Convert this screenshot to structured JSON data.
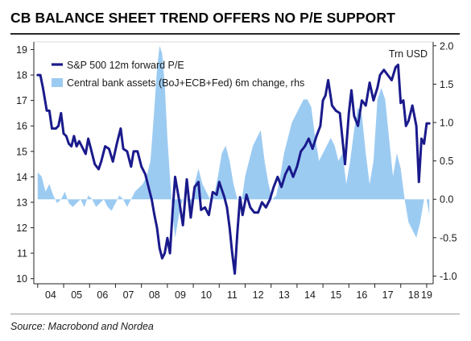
{
  "header": {
    "title": "CB BALANCE SHEET TREND OFFERS NO P/E SUPPORT"
  },
  "footer": {
    "source": "Source: Macrobond and Nordea"
  },
  "chart_data": {
    "type": "line",
    "title": "CB BALANCE SHEET TREND OFFERS NO P/E SUPPORT",
    "xlabel": "",
    "ylabel": "",
    "y2label": "Trn USD",
    "x_tick_labels": [
      "04",
      "05",
      "06",
      "07",
      "08",
      "09",
      "10",
      "11",
      "12",
      "13",
      "14",
      "15",
      "16",
      "17",
      "18",
      "19"
    ],
    "xlim": [
      2003.85,
      2019.25
    ],
    "ylim": [
      9.8,
      19.3
    ],
    "y_ticks": [
      10,
      11,
      12,
      13,
      14,
      15,
      16,
      17,
      18,
      19
    ],
    "y2lim": [
      -1.1,
      2.05
    ],
    "y2_ticks": [
      "2.0",
      "1.5",
      "1.0",
      "0.5",
      "0.0",
      "-0.5",
      "-1.0"
    ],
    "y2_tick_values": [
      2.0,
      1.5,
      1.0,
      0.5,
      0.0,
      -0.5,
      -1.0
    ],
    "legend_position": "top-left",
    "grid": false,
    "colors": {
      "line": "#1a1a8c",
      "area": "#9ccbf2"
    },
    "series": [
      {
        "name": "S&P 500 12m forward P/E",
        "type": "line",
        "axis": "left",
        "x": [
          2004.0,
          2004.1,
          2004.2,
          2004.35,
          2004.45,
          2004.55,
          2004.7,
          2004.8,
          2004.9,
          2005.0,
          2005.1,
          2005.2,
          2005.3,
          2005.4,
          2005.5,
          2005.6,
          2005.7,
          2005.85,
          2005.95,
          2006.05,
          2006.2,
          2006.35,
          2006.45,
          2006.6,
          2006.75,
          2006.9,
          2007.05,
          2007.2,
          2007.3,
          2007.45,
          2007.6,
          2007.7,
          2007.85,
          2008.0,
          2008.15,
          2008.3,
          2008.4,
          2008.5,
          2008.6,
          2008.7,
          2008.8,
          2008.9,
          2009.0,
          2009.1,
          2009.2,
          2009.3,
          2009.45,
          2009.6,
          2009.75,
          2009.9,
          2010.05,
          2010.2,
          2010.3,
          2010.45,
          2010.6,
          2010.75,
          2010.9,
          2011.0,
          2011.1,
          2011.2,
          2011.3,
          2011.4,
          2011.5,
          2011.6,
          2011.7,
          2011.8,
          2011.9,
          2012.05,
          2012.2,
          2012.35,
          2012.5,
          2012.65,
          2012.8,
          2012.95,
          2013.1,
          2013.25,
          2013.4,
          2013.55,
          2013.7,
          2013.85,
          2014.0,
          2014.15,
          2014.3,
          2014.45,
          2014.6,
          2014.75,
          2014.9,
          2015.0,
          2015.1,
          2015.2,
          2015.35,
          2015.5,
          2015.65,
          2015.75,
          2015.85,
          2016.0,
          2016.1,
          2016.2,
          2016.35,
          2016.5,
          2016.65,
          2016.8,
          2016.95,
          2017.1,
          2017.2,
          2017.35,
          2017.5,
          2017.65,
          2017.8,
          2017.9,
          2018.0,
          2018.1,
          2018.2,
          2018.3,
          2018.45,
          2018.6,
          2018.7,
          2018.8,
          2018.9,
          2019.0,
          2019.1
        ],
        "values": [
          18.0,
          18.0,
          17.5,
          16.6,
          16.6,
          15.9,
          15.9,
          16.0,
          16.5,
          15.7,
          15.6,
          15.3,
          15.2,
          15.6,
          15.2,
          15.4,
          15.2,
          14.9,
          15.5,
          15.1,
          14.5,
          14.3,
          14.6,
          15.2,
          15.1,
          14.6,
          15.3,
          15.9,
          15.1,
          15.0,
          14.4,
          15.0,
          15.0,
          14.4,
          14.1,
          13.5,
          13.1,
          12.5,
          12.0,
          11.2,
          10.8,
          11.0,
          11.6,
          11.0,
          12.6,
          14.0,
          13.1,
          12.1,
          13.9,
          12.4,
          13.6,
          13.8,
          12.7,
          12.8,
          12.5,
          13.4,
          13.3,
          13.8,
          13.5,
          13.2,
          12.8,
          12.0,
          11.0,
          10.2,
          11.8,
          13.2,
          12.5,
          13.3,
          12.8,
          12.6,
          12.6,
          13.0,
          12.8,
          13.1,
          13.6,
          14.0,
          13.6,
          14.1,
          14.4,
          14.0,
          14.4,
          15.0,
          15.2,
          15.5,
          15.1,
          15.6,
          16.0,
          17.0,
          17.2,
          17.8,
          16.8,
          16.6,
          16.5,
          15.5,
          14.5,
          16.5,
          17.4,
          16.4,
          16.0,
          17.0,
          16.8,
          17.7,
          17.0,
          17.5,
          18.0,
          18.2,
          18.0,
          17.8,
          18.3,
          18.4,
          16.9,
          17.0,
          16.0,
          16.2,
          16.8,
          16.0,
          13.8,
          15.5,
          15.3,
          16.1,
          16.1
        ]
      },
      {
        "name": "Central bank assets (BoJ+ECB+Fed) 6m change, rhs",
        "type": "area",
        "axis": "right",
        "x": [
          2004.0,
          2004.15,
          2004.3,
          2004.45,
          2004.6,
          2004.75,
          2004.9,
          2005.05,
          2005.2,
          2005.35,
          2005.5,
          2005.65,
          2005.8,
          2005.95,
          2006.1,
          2006.25,
          2006.4,
          2006.55,
          2006.7,
          2006.85,
          2007.0,
          2007.15,
          2007.3,
          2007.45,
          2007.6,
          2007.75,
          2007.9,
          2008.05,
          2008.2,
          2008.35,
          2008.5,
          2008.6,
          2008.7,
          2008.8,
          2008.9,
          2009.0,
          2009.1,
          2009.2,
          2009.3,
          2009.4,
          2009.5,
          2009.6,
          2009.75,
          2009.9,
          2010.05,
          2010.2,
          2010.35,
          2010.5,
          2010.65,
          2010.8,
          2010.95,
          2011.1,
          2011.25,
          2011.4,
          2011.55,
          2011.7,
          2011.85,
          2012.0,
          2012.15,
          2012.3,
          2012.45,
          2012.6,
          2012.75,
          2012.9,
          2013.05,
          2013.2,
          2013.35,
          2013.5,
          2013.65,
          2013.8,
          2013.95,
          2014.1,
          2014.25,
          2014.4,
          2014.55,
          2014.7,
          2014.85,
          2015.0,
          2015.15,
          2015.3,
          2015.45,
          2015.6,
          2015.75,
          2015.9,
          2016.05,
          2016.2,
          2016.35,
          2016.5,
          2016.65,
          2016.8,
          2016.95,
          2017.1,
          2017.25,
          2017.4,
          2017.55,
          2017.7,
          2017.85,
          2018.0,
          2018.15,
          2018.3,
          2018.45,
          2018.6,
          2018.75,
          2018.9,
          2019.0,
          2019.1
        ],
        "values": [
          0.35,
          0.3,
          0.1,
          0.2,
          0.05,
          -0.05,
          0.0,
          0.1,
          -0.05,
          -0.1,
          -0.05,
          0.0,
          -0.1,
          0.05,
          0.0,
          -0.1,
          -0.05,
          0.0,
          -0.1,
          -0.15,
          -0.05,
          0.05,
          0.0,
          -0.1,
          0.0,
          0.1,
          0.15,
          0.2,
          0.3,
          0.5,
          1.2,
          1.7,
          2.0,
          1.9,
          1.5,
          0.8,
          0.3,
          -0.2,
          -0.5,
          -0.3,
          -0.1,
          0.0,
          0.0,
          -0.1,
          0.2,
          0.4,
          0.2,
          0.1,
          0.0,
          0.05,
          0.3,
          0.6,
          0.7,
          0.5,
          0.2,
          0.0,
          -0.05,
          0.3,
          0.5,
          0.7,
          0.8,
          0.9,
          0.5,
          0.2,
          0.0,
          0.05,
          0.3,
          0.6,
          0.8,
          1.0,
          1.1,
          1.2,
          1.3,
          1.3,
          1.2,
          0.8,
          0.5,
          0.6,
          0.7,
          0.8,
          0.7,
          0.5,
          0.6,
          0.2,
          0.5,
          0.9,
          1.2,
          1.1,
          0.6,
          0.2,
          0.5,
          1.3,
          1.45,
          1.3,
          0.8,
          0.3,
          0.6,
          0.4,
          0.0,
          -0.3,
          -0.4,
          -0.5,
          -0.3,
          0.0,
          0.0,
          -0.2
        ]
      }
    ]
  }
}
